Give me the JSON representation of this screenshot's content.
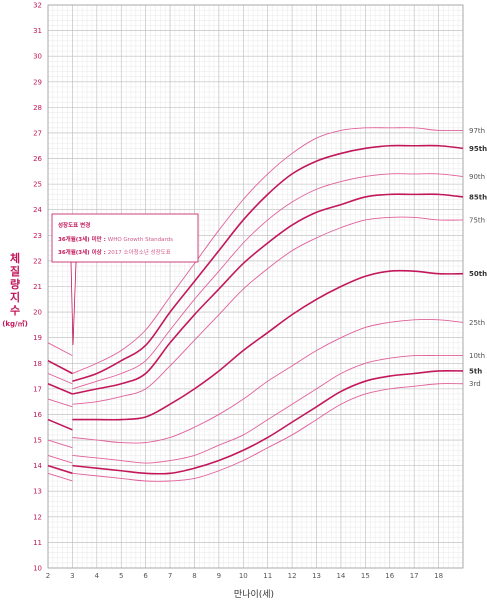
{
  "colors": {
    "grid_major": "#bdbdbd",
    "grid_minor": "#e3e3e3",
    "curve": "#c2185b",
    "curve_light": "#e0609a",
    "tick": "#c2185b"
  },
  "annotation": {
    "title": "성장도표 변경",
    "line1_prefix": "36개월(3세) 미만 : ",
    "line1_value": "WHO Growth Standards",
    "line2_prefix": "36개월(3세) 이상 : ",
    "line2_value": "2017 소아청소년 성장도표"
  },
  "chart_data": {
    "type": "line",
    "title": "",
    "ylabel_chars": [
      "체",
      "질",
      "량",
      "지",
      "수"
    ],
    "yunit": "(kg/㎡)",
    "xlabel": "만나이(세)",
    "xlim": [
      2,
      19
    ],
    "ylim": [
      10,
      32
    ],
    "xticks": [
      2,
      3,
      4,
      5,
      6,
      7,
      8,
      9,
      10,
      11,
      12,
      13,
      14,
      15,
      16,
      17,
      18
    ],
    "yticks": [
      10,
      11,
      12,
      13,
      14,
      15,
      16,
      17,
      18,
      19,
      20,
      21,
      22,
      23,
      24,
      25,
      26,
      27,
      28,
      29,
      30,
      31,
      32
    ],
    "grid": true,
    "legend": "right-inline",
    "who_segment_x": [
      2,
      3
    ],
    "series": [
      {
        "name": "97th",
        "bold": false,
        "who": [
          18.8,
          18.3
        ],
        "values": [
          [
            3,
            17.6
          ],
          [
            4,
            18.0
          ],
          [
            5,
            18.5
          ],
          [
            6,
            19.3
          ],
          [
            7,
            20.6
          ],
          [
            8,
            21.9
          ],
          [
            9,
            23.2
          ],
          [
            10,
            24.4
          ],
          [
            11,
            25.4
          ],
          [
            12,
            26.2
          ],
          [
            13,
            26.8
          ],
          [
            14,
            27.1
          ],
          [
            15,
            27.2
          ],
          [
            16,
            27.2
          ],
          [
            17,
            27.2
          ],
          [
            18,
            27.1
          ],
          [
            19,
            27.1
          ]
        ]
      },
      {
        "name": "95th",
        "bold": true,
        "who": [
          18.1,
          17.6
        ],
        "values": [
          [
            3,
            17.3
          ],
          [
            4,
            17.6
          ],
          [
            5,
            18.1
          ],
          [
            6,
            18.7
          ],
          [
            7,
            20.0
          ],
          [
            8,
            21.2
          ],
          [
            9,
            22.4
          ],
          [
            10,
            23.6
          ],
          [
            11,
            24.6
          ],
          [
            12,
            25.4
          ],
          [
            13,
            25.9
          ],
          [
            14,
            26.2
          ],
          [
            15,
            26.4
          ],
          [
            16,
            26.5
          ],
          [
            17,
            26.5
          ],
          [
            18,
            26.5
          ],
          [
            19,
            26.4
          ]
        ]
      },
      {
        "name": "90th",
        "bold": false,
        "who": [
          17.6,
          17.2
        ],
        "values": [
          [
            3,
            17.0
          ],
          [
            4,
            17.3
          ],
          [
            5,
            17.6
          ],
          [
            6,
            18.1
          ],
          [
            7,
            19.3
          ],
          [
            8,
            20.5
          ],
          [
            9,
            21.6
          ],
          [
            10,
            22.7
          ],
          [
            11,
            23.6
          ],
          [
            12,
            24.3
          ],
          [
            13,
            24.8
          ],
          [
            14,
            25.1
          ],
          [
            15,
            25.3
          ],
          [
            16,
            25.4
          ],
          [
            17,
            25.4
          ],
          [
            18,
            25.4
          ],
          [
            19,
            25.3
          ]
        ]
      },
      {
        "name": "85th",
        "bold": true,
        "who": [
          17.2,
          16.8
        ],
        "values": [
          [
            3,
            16.8
          ],
          [
            4,
            17.0
          ],
          [
            5,
            17.2
          ],
          [
            6,
            17.6
          ],
          [
            7,
            18.8
          ],
          [
            8,
            19.9
          ],
          [
            9,
            20.9
          ],
          [
            10,
            21.9
          ],
          [
            11,
            22.7
          ],
          [
            12,
            23.4
          ],
          [
            13,
            23.9
          ],
          [
            14,
            24.2
          ],
          [
            15,
            24.5
          ],
          [
            16,
            24.6
          ],
          [
            17,
            24.6
          ],
          [
            18,
            24.6
          ],
          [
            19,
            24.5
          ]
        ]
      },
      {
        "name": "75th",
        "bold": false,
        "who": [
          16.6,
          16.3
        ],
        "values": [
          [
            3,
            16.4
          ],
          [
            4,
            16.5
          ],
          [
            5,
            16.7
          ],
          [
            6,
            17.0
          ],
          [
            7,
            17.9
          ],
          [
            8,
            18.9
          ],
          [
            9,
            19.9
          ],
          [
            10,
            20.9
          ],
          [
            11,
            21.7
          ],
          [
            12,
            22.4
          ],
          [
            13,
            22.9
          ],
          [
            14,
            23.3
          ],
          [
            15,
            23.6
          ],
          [
            16,
            23.7
          ],
          [
            17,
            23.7
          ],
          [
            18,
            23.6
          ],
          [
            19,
            23.6
          ]
        ]
      },
      {
        "name": "50th",
        "bold": true,
        "who": [
          15.8,
          15.4
        ],
        "values": [
          [
            3,
            15.8
          ],
          [
            4,
            15.8
          ],
          [
            5,
            15.8
          ],
          [
            6,
            15.9
          ],
          [
            7,
            16.4
          ],
          [
            8,
            17.0
          ],
          [
            9,
            17.7
          ],
          [
            10,
            18.5
          ],
          [
            11,
            19.2
          ],
          [
            12,
            19.9
          ],
          [
            13,
            20.5
          ],
          [
            14,
            21.0
          ],
          [
            15,
            21.4
          ],
          [
            16,
            21.6
          ],
          [
            17,
            21.6
          ],
          [
            18,
            21.5
          ],
          [
            19,
            21.5
          ]
        ]
      },
      {
        "name": "25th",
        "bold": false,
        "who": [
          15.0,
          14.7
        ],
        "values": [
          [
            3,
            15.1
          ],
          [
            4,
            15.0
          ],
          [
            5,
            14.9
          ],
          [
            6,
            14.9
          ],
          [
            7,
            15.1
          ],
          [
            8,
            15.5
          ],
          [
            9,
            16.0
          ],
          [
            10,
            16.6
          ],
          [
            11,
            17.3
          ],
          [
            12,
            17.9
          ],
          [
            13,
            18.5
          ],
          [
            14,
            19.0
          ],
          [
            15,
            19.4
          ],
          [
            16,
            19.6
          ],
          [
            17,
            19.7
          ],
          [
            18,
            19.7
          ],
          [
            19,
            19.6
          ]
        ]
      },
      {
        "name": "10th",
        "bold": false,
        "who": [
          14.4,
          14.1
        ],
        "values": [
          [
            3,
            14.4
          ],
          [
            4,
            14.3
          ],
          [
            5,
            14.2
          ],
          [
            6,
            14.1
          ],
          [
            7,
            14.2
          ],
          [
            8,
            14.4
          ],
          [
            9,
            14.8
          ],
          [
            10,
            15.2
          ],
          [
            11,
            15.8
          ],
          [
            12,
            16.4
          ],
          [
            13,
            17.0
          ],
          [
            14,
            17.6
          ],
          [
            15,
            18.0
          ],
          [
            16,
            18.2
          ],
          [
            17,
            18.3
          ],
          [
            18,
            18.3
          ],
          [
            19,
            18.3
          ]
        ]
      },
      {
        "name": "5th",
        "bold": true,
        "who": [
          14.0,
          13.7
        ],
        "values": [
          [
            3,
            14.0
          ],
          [
            4,
            13.9
          ],
          [
            5,
            13.8
          ],
          [
            6,
            13.7
          ],
          [
            7,
            13.7
          ],
          [
            8,
            13.9
          ],
          [
            9,
            14.2
          ],
          [
            10,
            14.6
          ],
          [
            11,
            15.1
          ],
          [
            12,
            15.7
          ],
          [
            13,
            16.3
          ],
          [
            14,
            16.9
          ],
          [
            15,
            17.3
          ],
          [
            16,
            17.5
          ],
          [
            17,
            17.6
          ],
          [
            18,
            17.7
          ],
          [
            19,
            17.7
          ]
        ]
      },
      {
        "name": "3rd",
        "bold": false,
        "who": [
          13.7,
          13.4
        ],
        "values": [
          [
            3,
            13.7
          ],
          [
            4,
            13.6
          ],
          [
            5,
            13.5
          ],
          [
            6,
            13.4
          ],
          [
            7,
            13.4
          ],
          [
            8,
            13.5
          ],
          [
            9,
            13.8
          ],
          [
            10,
            14.2
          ],
          [
            11,
            14.7
          ],
          [
            12,
            15.2
          ],
          [
            13,
            15.8
          ],
          [
            14,
            16.4
          ],
          [
            15,
            16.8
          ],
          [
            16,
            17.0
          ],
          [
            17,
            17.1
          ],
          [
            18,
            17.2
          ],
          [
            19,
            17.2
          ]
        ]
      }
    ]
  }
}
